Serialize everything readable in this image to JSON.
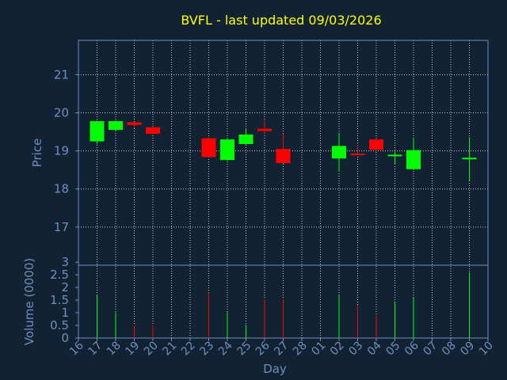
{
  "chart_data": [
    {
      "type": "candlestick",
      "title": "BVFL - last updated 09/03/2026",
      "ylabel": "Price",
      "ylim": [
        16.0,
        21.9
      ],
      "yticks": [
        "17",
        "18",
        "19",
        "20",
        "21"
      ],
      "grid": true,
      "colors": {
        "up": "#00ff00",
        "down": "#ff0000",
        "background": "#112233",
        "frame": "#6f8fbf",
        "title": "#ffff00"
      },
      "candles": [
        {
          "day": "17",
          "open": 19.25,
          "close": 19.78,
          "high": 19.8,
          "low": 19.18
        },
        {
          "day": "18",
          "open": 19.55,
          "close": 19.78,
          "high": 19.8,
          "low": 19.53
        },
        {
          "day": "19",
          "open": 19.75,
          "close": 19.68,
          "high": 19.76,
          "low": 19.6
        },
        {
          "day": "20",
          "open": 19.62,
          "close": 19.45,
          "high": 19.63,
          "low": 19.43
        },
        {
          "day": "23",
          "open": 19.33,
          "close": 18.84,
          "high": 19.34,
          "low": 18.83
        },
        {
          "day": "24",
          "open": 18.76,
          "close": 19.3,
          "high": 19.32,
          "low": 18.74
        },
        {
          "day": "25",
          "open": 19.18,
          "close": 19.43,
          "high": 19.58,
          "low": 19.16
        },
        {
          "day": "26",
          "open": 19.58,
          "close": 19.52,
          "high": 19.8,
          "low": 19.46
        },
        {
          "day": "27",
          "open": 19.05,
          "close": 18.68,
          "high": 19.45,
          "low": 18.66
        },
        {
          "day": "02",
          "open": 18.8,
          "close": 19.13,
          "high": 19.48,
          "low": 18.45
        },
        {
          "day": "03",
          "open": 18.93,
          "close": 18.91,
          "high": 19.15,
          "low": 18.89
        },
        {
          "day": "04",
          "open": 19.3,
          "close": 19.03,
          "high": 19.31,
          "low": 19.0
        },
        {
          "day": "05",
          "open": 18.88,
          "close": 18.9,
          "high": 18.99,
          "low": 18.64
        },
        {
          "day": "06",
          "open": 18.52,
          "close": 19.02,
          "high": 19.33,
          "low": 18.5
        },
        {
          "day": "09",
          "open": 18.79,
          "close": 18.82,
          "high": 19.36,
          "low": 18.22
        }
      ]
    },
    {
      "type": "bar",
      "ylabel": "Volume (0000)",
      "xlabel": "Day",
      "ylim": [
        0,
        2.88
      ],
      "yticks": [
        "0",
        "0.5",
        "1",
        "1.5",
        "2",
        "2.5",
        "3"
      ],
      "categories": [
        "16",
        "17",
        "18",
        "19",
        "20",
        "21",
        "22",
        "23",
        "24",
        "25",
        "26",
        "27",
        "28",
        "01",
        "02",
        "03",
        "04",
        "05",
        "06",
        "07",
        "08",
        "09",
        "10"
      ],
      "volumes": [
        {
          "day": "17",
          "value": 1.72,
          "dir": "up"
        },
        {
          "day": "18",
          "value": 1.02,
          "dir": "up"
        },
        {
          "day": "19",
          "value": 0.5,
          "dir": "down"
        },
        {
          "day": "20",
          "value": 0.5,
          "dir": "down"
        },
        {
          "day": "23",
          "value": 1.8,
          "dir": "down"
        },
        {
          "day": "24",
          "value": 1.02,
          "dir": "up"
        },
        {
          "day": "25",
          "value": 0.52,
          "dir": "up"
        },
        {
          "day": "26",
          "value": 1.55,
          "dir": "down"
        },
        {
          "day": "27",
          "value": 1.55,
          "dir": "down"
        },
        {
          "day": "02",
          "value": 1.7,
          "dir": "up"
        },
        {
          "day": "03",
          "value": 1.3,
          "dir": "down"
        },
        {
          "day": "04",
          "value": 0.9,
          "dir": "down"
        },
        {
          "day": "05",
          "value": 1.45,
          "dir": "up"
        },
        {
          "day": "06",
          "value": 1.6,
          "dir": "up"
        },
        {
          "day": "09",
          "value": 2.6,
          "dir": "up"
        }
      ]
    }
  ]
}
